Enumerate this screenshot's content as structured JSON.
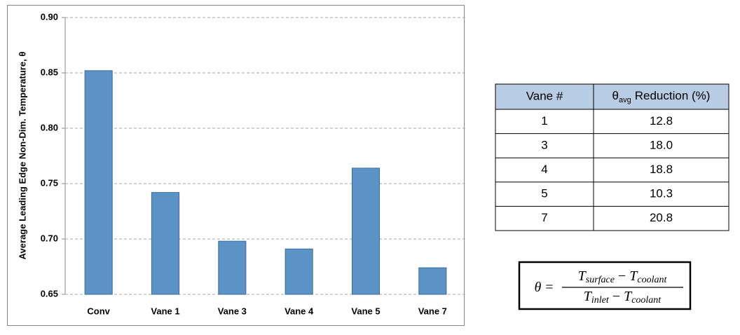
{
  "chart_data": {
    "type": "bar",
    "ylabel": "Average Leading Edge Non-Dim. Temperature, θ",
    "categories": [
      "Conv",
      "Vane 1",
      "Vane 3",
      "Vane 4",
      "Vane 5",
      "Vane 7"
    ],
    "values": [
      0.852,
      0.742,
      0.698,
      0.691,
      0.764,
      0.674
    ],
    "color": "#5b93c7",
    "ylim": [
      0.65,
      0.9
    ],
    "yticks": [
      0.65,
      {
        "value": 0.7,
        "label": "0.70"
      },
      0.75,
      {
        "value": 0.8,
        "label": "0.80"
      },
      0.85,
      {
        "value": 0.9,
        "label": "0.90"
      }
    ],
    "grid": true
  },
  "table": {
    "header": {
      "vane": "Vane #",
      "symbol": "θ",
      "subscript": "avg",
      "text": "Reduction (%)"
    },
    "rows": [
      [
        "1",
        "12.8"
      ],
      [
        "3",
        "18.0"
      ],
      [
        "4",
        "18.8"
      ],
      [
        "5",
        "10.3"
      ],
      [
        "7",
        "20.8"
      ]
    ]
  },
  "formula": {
    "lhs": "θ",
    "eq": "=",
    "numerator": {
      "t1": "T",
      "s1": "surface",
      "op": "−",
      "t2": "T",
      "s2": "coolant"
    },
    "denominator": {
      "t1": "T",
      "s1": "inlet",
      "op": "−",
      "t2": "T",
      "s2": "coolant"
    }
  }
}
